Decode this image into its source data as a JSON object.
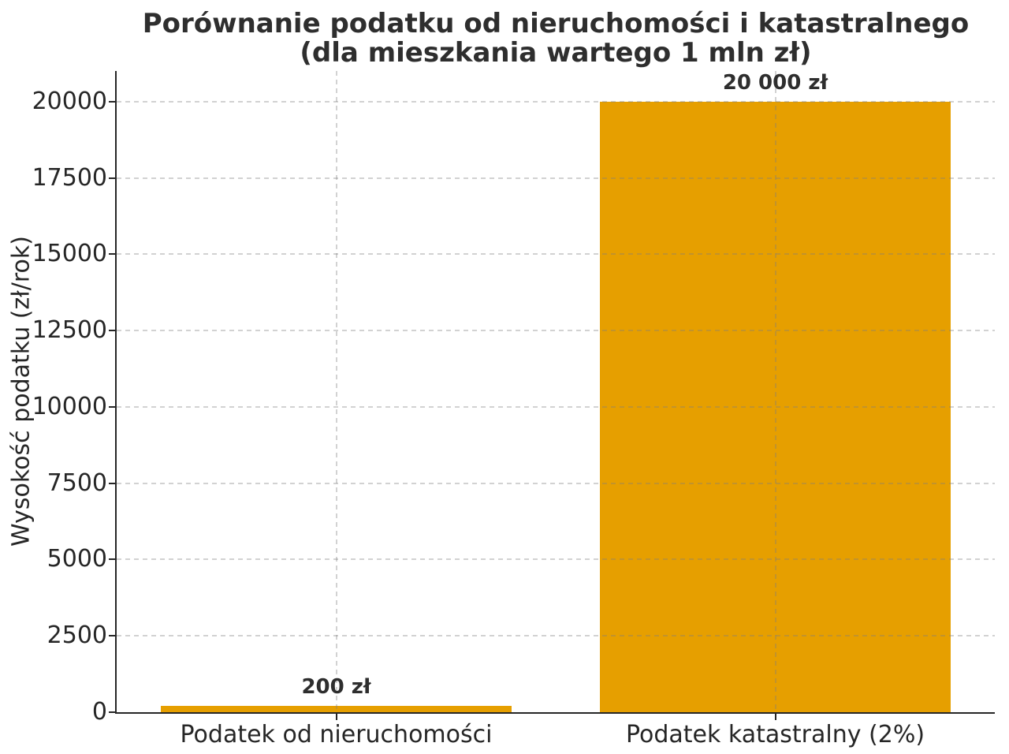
{
  "chart_data": {
    "type": "bar",
    "title_line1": "Porównanie podatku od nieruchomości i katastralnego",
    "title_line2": "(dla mieszkania wartego 1 mln zł)",
    "ylabel": "Wysokość podatku (zł/rok)",
    "xlabel": "",
    "categories": [
      "Podatek od nieruchomości",
      "Podatek katastralny (2%)"
    ],
    "values": [
      200,
      20000
    ],
    "bar_value_labels": [
      "200 zł",
      "20 000 zł"
    ],
    "yticks": [
      0,
      2500,
      5000,
      7500,
      10000,
      12500,
      15000,
      17500,
      20000
    ],
    "ylim": [
      0,
      21000
    ],
    "bar_width_fraction": 0.8,
    "bar_color": "#E69F00",
    "grid": true,
    "grid_style": "dashed",
    "legend": "none"
  },
  "colors": {
    "background": "#ffffff",
    "bar": "#E69F00",
    "title_text": "#2e2e2e",
    "axis_text": "#262626",
    "spine": "#262626",
    "grid_base": "#7d7d7d",
    "grid_alpha": 0.35
  }
}
